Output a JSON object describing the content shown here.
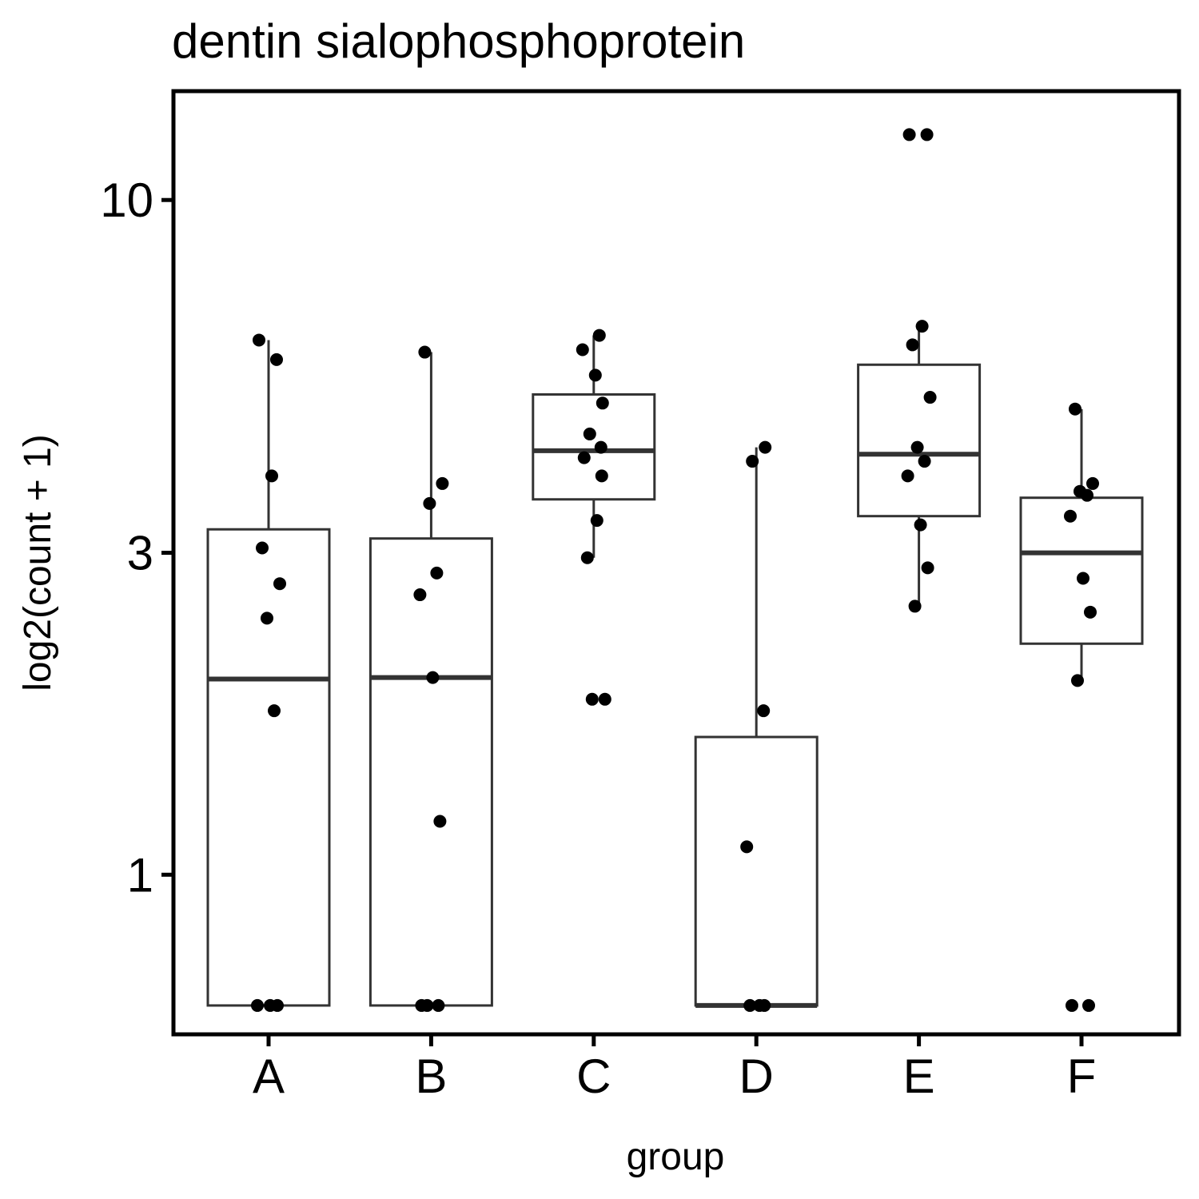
{
  "chart_data": {
    "type": "boxplot",
    "title": "dentin sialophosphoprotein",
    "xlabel": "group",
    "ylabel": "log2(count + 1)",
    "y_scale": "log10",
    "ylim": [
      0.58,
      14.5
    ],
    "y_ticks": [
      {
        "value": 1,
        "label": "1"
      },
      {
        "value": 3,
        "label": "3"
      },
      {
        "value": 10,
        "label": "10"
      }
    ],
    "categories": [
      "A",
      "B",
      "C",
      "D",
      "E",
      "F"
    ],
    "boxes": [
      {
        "group": "A",
        "lower_whisker": 0.64,
        "q1": 0.64,
        "median": 1.95,
        "q3": 3.25,
        "upper_whisker": 6.2,
        "points": [
          6.2,
          5.8,
          3.9,
          3.05,
          2.7,
          2.4,
          1.75,
          0.64,
          0.64,
          0.64
        ]
      },
      {
        "group": "B",
        "lower_whisker": 0.64,
        "q1": 0.64,
        "median": 1.96,
        "q3": 3.15,
        "upper_whisker": 5.95,
        "points": [
          5.95,
          3.8,
          3.55,
          2.8,
          2.6,
          1.96,
          1.2,
          0.64,
          0.64,
          0.64
        ]
      },
      {
        "group": "C",
        "lower_whisker": 2.95,
        "q1": 3.6,
        "median": 4.25,
        "q3": 5.15,
        "upper_whisker": 6.3,
        "points": [
          6.3,
          6.0,
          5.5,
          5.0,
          4.5,
          4.3,
          4.15,
          3.9,
          3.35,
          2.95,
          1.82,
          1.82
        ]
      },
      {
        "group": "D",
        "lower_whisker": 0.64,
        "q1": 0.64,
        "median": 0.64,
        "q3": 1.6,
        "upper_whisker": 4.3,
        "points": [
          4.3,
          4.1,
          1.75,
          1.1,
          0.64,
          0.64,
          0.64
        ]
      },
      {
        "group": "E",
        "lower_whisker": 2.5,
        "q1": 3.4,
        "median": 4.2,
        "q3": 5.7,
        "upper_whisker": 6.5,
        "points": [
          12.5,
          12.5,
          6.5,
          6.1,
          5.1,
          4.3,
          4.1,
          3.9,
          3.3,
          2.85,
          2.5
        ]
      },
      {
        "group": "F",
        "lower_whisker": 1.94,
        "q1": 2.2,
        "median": 3.0,
        "q3": 3.62,
        "upper_whisker": 4.9,
        "points": [
          4.9,
          3.8,
          3.7,
          3.65,
          3.4,
          2.75,
          2.45,
          1.94,
          0.64,
          0.64
        ]
      }
    ]
  }
}
